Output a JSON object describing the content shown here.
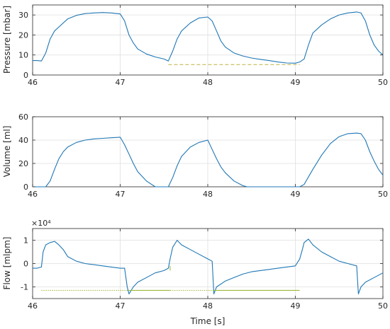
{
  "chart_data": [
    {
      "type": "line",
      "ylabel": "Pressure [mbar]",
      "xlim": [
        46,
        50
      ],
      "ylim": [
        0,
        35
      ],
      "xticks": [
        "46",
        "47",
        "48",
        "49",
        "50"
      ],
      "yticks": [
        "0",
        "10",
        "20",
        "30"
      ],
      "grid": true,
      "series": [
        {
          "color": "#1f77b4",
          "x": [
            46.0,
            46.05,
            46.1,
            46.15,
            46.2,
            46.25,
            46.3,
            46.4,
            46.5,
            46.6,
            46.7,
            46.8,
            46.9,
            47.0,
            47.05,
            47.1,
            47.15,
            47.2,
            47.3,
            47.4,
            47.5,
            47.55,
            47.6,
            47.65,
            47.7,
            47.8,
            47.9,
            48.0,
            48.05,
            48.1,
            48.15,
            48.2,
            48.3,
            48.4,
            48.5,
            48.6,
            48.7,
            48.8,
            48.9,
            49.0,
            49.05,
            49.1,
            49.15,
            49.2,
            49.3,
            49.4,
            49.5,
            49.6,
            49.7,
            49.75,
            49.8,
            49.85,
            49.9,
            49.95,
            50.0
          ],
          "y": [
            7.2,
            7.2,
            7.0,
            11.0,
            18.0,
            22.0,
            24.0,
            28.0,
            29.8,
            30.7,
            31.0,
            31.2,
            31.0,
            30.5,
            27.0,
            20.0,
            16.0,
            13.0,
            10.5,
            9.0,
            8.0,
            7.0,
            12.0,
            18.0,
            22.0,
            26.0,
            28.5,
            29.0,
            27.0,
            22.0,
            17.0,
            14.0,
            11.0,
            9.5,
            8.5,
            7.8,
            7.2,
            6.5,
            6.0,
            5.9,
            6.5,
            8.0,
            15.0,
            21.0,
            25.0,
            28.0,
            30.0,
            31.0,
            31.5,
            31.0,
            27.0,
            20.0,
            15.0,
            12.0,
            10.0
          ]
        },
        {
          "color": "#c8b95a",
          "dash": "dashed",
          "x": [
            47.55,
            49.05
          ],
          "y": [
            5.2,
            5.2
          ]
        }
      ]
    },
    {
      "type": "line",
      "ylabel": "Volume [ml]",
      "xlim": [
        46,
        50
      ],
      "ylim": [
        0,
        60
      ],
      "xticks": [
        "46",
        "47",
        "48",
        "49",
        "50"
      ],
      "yticks": [
        "0",
        "20",
        "40",
        "60"
      ],
      "grid": true,
      "series": [
        {
          "color": "#1f77b4",
          "x": [
            46.0,
            46.1,
            46.15,
            46.2,
            46.25,
            46.3,
            46.35,
            46.4,
            46.5,
            46.6,
            46.7,
            46.8,
            46.9,
            47.0,
            47.05,
            47.1,
            47.15,
            47.2,
            47.3,
            47.4,
            47.5,
            47.55,
            47.6,
            47.65,
            47.7,
            47.8,
            47.9,
            48.0,
            48.05,
            48.1,
            48.15,
            48.2,
            48.3,
            48.4,
            48.45,
            48.5,
            48.7,
            48.9,
            49.0,
            49.05,
            49.1,
            49.2,
            49.3,
            49.4,
            49.5,
            49.6,
            49.7,
            49.75,
            49.8,
            49.85,
            49.9,
            49.95,
            50.0
          ],
          "y": [
            0,
            0,
            0,
            5,
            15,
            24,
            30,
            34,
            38,
            40,
            41,
            41.5,
            42,
            42.5,
            36,
            28,
            20,
            13,
            5,
            0,
            0,
            0,
            8,
            18,
            26,
            34,
            38,
            40,
            32,
            24,
            17,
            12,
            5,
            1,
            0,
            0,
            0,
            0,
            0,
            0,
            2,
            15,
            27,
            37,
            43,
            45.5,
            46,
            45.5,
            40,
            30,
            22,
            15,
            10
          ]
        }
      ]
    },
    {
      "type": "line",
      "ylabel": "Flow [mlpm]",
      "xlabel": "Time [s]",
      "exponent": "×10⁴",
      "xlim": [
        46,
        50
      ],
      "ylim": [
        -1.5,
        1.5
      ],
      "xticks": [
        "46",
        "47",
        "48",
        "49",
        "50"
      ],
      "yticks": [
        "-1",
        "0",
        "1"
      ],
      "grid": true,
      "series": [
        {
          "color": "#1f77b4",
          "x": [
            46.0,
            46.05,
            46.1,
            46.12,
            46.15,
            46.2,
            46.25,
            46.3,
            46.35,
            46.4,
            46.5,
            46.6,
            46.7,
            46.8,
            46.9,
            47.0,
            47.05,
            47.08,
            47.1,
            47.15,
            47.2,
            47.3,
            47.4,
            47.5,
            47.55,
            47.57,
            47.6,
            47.65,
            47.7,
            47.8,
            47.9,
            48.0,
            48.05,
            48.07,
            48.1,
            48.2,
            48.3,
            48.4,
            48.5,
            48.6,
            48.7,
            48.8,
            48.9,
            49.0,
            49.05,
            49.08,
            49.1,
            49.15,
            49.2,
            49.3,
            49.4,
            49.5,
            49.6,
            49.7,
            49.72,
            49.75,
            49.8,
            49.9,
            50.0
          ],
          "y": [
            -0.2,
            -0.2,
            -0.15,
            0.5,
            0.8,
            0.9,
            0.95,
            0.8,
            0.6,
            0.3,
            0.1,
            0.0,
            -0.05,
            -0.1,
            -0.15,
            -0.2,
            -0.2,
            -1.0,
            -1.3,
            -1.0,
            -0.8,
            -0.6,
            -0.4,
            -0.3,
            -0.2,
            0.2,
            0.7,
            1.0,
            0.8,
            0.6,
            0.4,
            0.2,
            0.1,
            -1.3,
            -1.0,
            -0.75,
            -0.6,
            -0.45,
            -0.35,
            -0.3,
            -0.25,
            -0.2,
            -0.15,
            -0.1,
            0.2,
            0.6,
            0.9,
            1.05,
            0.8,
            0.5,
            0.3,
            0.1,
            0.0,
            -0.1,
            -1.3,
            -1.0,
            -0.8,
            -0.6,
            -0.4
          ]
        },
        {
          "color": "#a8bf48",
          "dash": "dotted",
          "x": [
            46.1,
            47.1
          ],
          "y": [
            -1.15,
            -1.15
          ]
        },
        {
          "color": "#9cba3c",
          "dash": "solid",
          "x": [
            47.1,
            47.57
          ],
          "y": [
            -1.15,
            -1.15
          ]
        },
        {
          "color": "#a8bf48",
          "dash": "dotted",
          "x": [
            47.57,
            48.07
          ],
          "y": [
            -1.15,
            -1.15
          ]
        },
        {
          "color": "#9cba3c",
          "dash": "solid",
          "x": [
            48.07,
            49.05
          ],
          "y": [
            -1.15,
            -1.15
          ]
        },
        {
          "color": "#9cba3c",
          "dash": "solid",
          "x": [
            47.57,
            47.57
          ],
          "y": [
            -0.1,
            -0.3
          ]
        }
      ]
    }
  ]
}
